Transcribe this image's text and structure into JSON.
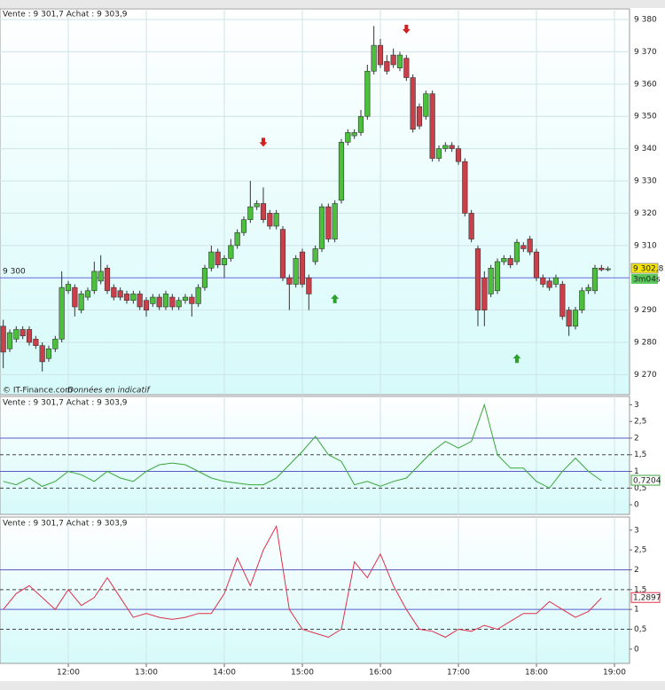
{
  "chart_data": [
    {
      "type": "candlestick",
      "header": "Vente : 9 301,7 Achat : 9 303,9",
      "source": "© IT-Finance.com",
      "note": "Données en indicatif",
      "x": [
        670,
        675,
        680,
        685,
        690,
        695,
        700,
        705,
        710,
        715,
        720,
        725,
        730,
        735,
        740,
        745,
        750,
        755,
        760,
        765,
        770,
        775,
        780,
        785,
        790,
        795,
        800,
        805,
        810,
        815,
        820,
        825,
        830,
        835,
        840,
        845,
        850,
        855,
        860,
        865,
        870,
        875,
        880,
        885,
        890,
        895,
        900,
        905,
        910,
        915,
        920,
        925,
        930,
        935,
        940,
        945,
        950,
        955,
        960,
        965,
        970,
        975,
        980,
        985,
        990,
        995,
        1000,
        1005,
        1010,
        1015,
        1020,
        1025,
        1030,
        1035,
        1040,
        1045,
        1050,
        1055,
        1060,
        1065,
        1070,
        1075,
        1080,
        1085,
        1090,
        1095,
        1100,
        1105,
        1110,
        1115,
        1120,
        1125,
        1130,
        1135
      ],
      "open": [
        9285,
        9278,
        9281,
        9284,
        9284,
        9281,
        9279,
        9275,
        9278,
        9281,
        9296,
        9297,
        9290,
        9294,
        9296,
        9299,
        9303,
        9297,
        9296,
        9295,
        9293,
        9295,
        9293,
        9292,
        9294,
        9291,
        9294,
        9291,
        9293,
        9294,
        9292,
        9297,
        9303,
        9308,
        9304,
        9306,
        9310,
        9314,
        9318,
        9322,
        9323,
        9320,
        9316,
        9315,
        9300,
        9298,
        9308,
        9300,
        9305,
        9309,
        9322,
        9312,
        9324,
        9342,
        9344,
        9345,
        9350,
        9364,
        9372,
        9367,
        9369,
        9365,
        9368,
        9362,
        9353,
        9350,
        9357,
        9337,
        9340,
        9341,
        9340,
        9336,
        9320,
        9309,
        9300,
        9295,
        9296,
        9305,
        9306,
        9305,
        9310,
        9312,
        9308,
        9300,
        9299,
        9298,
        9298,
        9290,
        9285,
        9290,
        9296,
        9296,
        9303,
        9302.5
      ],
      "high": [
        9287,
        9284,
        9285,
        9285,
        9285,
        9282,
        9280,
        9279,
        9282,
        9302,
        9299,
        9298,
        9296,
        9297,
        9305,
        9307,
        9304,
        9298,
        9297,
        9296,
        9296,
        9296,
        9294,
        9295,
        9295,
        9296,
        9295,
        9294,
        9295,
        9295,
        9298,
        9304,
        9310,
        9309,
        9307,
        9312,
        9315,
        9319,
        9330,
        9324,
        9328,
        9321,
        9321,
        9316,
        9301,
        9307,
        9309,
        9301,
        9310,
        9323,
        9323,
        9324,
        9343,
        9346,
        9346,
        9352,
        9366,
        9378,
        9374,
        9369,
        9371,
        9370,
        9369,
        9363,
        9354,
        9358,
        9358,
        9341,
        9342,
        9342,
        9341,
        9337,
        9321,
        9310,
        9302,
        9304,
        9306,
        9307,
        9307,
        9312,
        9311,
        9313,
        9309,
        9301,
        9300,
        9301,
        9299,
        9291,
        9291,
        9297,
        9298,
        9304,
        9304,
        9303.5
      ],
      "low": [
        9272,
        9277,
        9280,
        9281,
        9279,
        9278,
        9271,
        9274,
        9277,
        9280,
        9295,
        9288,
        9289,
        9293,
        9295,
        9298,
        9295,
        9293,
        9293,
        9292,
        9292,
        9290,
        9288,
        9291,
        9290,
        9290,
        9290,
        9290,
        9292,
        9288,
        9291,
        9296,
        9302,
        9303,
        9300,
        9305,
        9309,
        9313,
        9317,
        9321,
        9317,
        9315,
        9315,
        9299,
        9290,
        9297,
        9297,
        9290,
        9304,
        9308,
        9311,
        9311,
        9323,
        9341,
        9343,
        9344,
        9349,
        9363,
        9365,
        9363,
        9365,
        9364,
        9361,
        9345,
        9346,
        9349,
        9336,
        9336,
        9339,
        9339,
        9335,
        9319,
        9311,
        9285,
        9285,
        9294,
        9295,
        9304,
        9303,
        9304,
        9308,
        9307,
        9299,
        9297,
        9296,
        9297,
        9287,
        9282,
        9284,
        9289,
        9295,
        9295,
        9302,
        9302
      ],
      "close": [
        9277,
        9283,
        9284,
        9282,
        9280,
        9279,
        9274,
        9278,
        9281,
        9297,
        9298,
        9291,
        9295,
        9296,
        9302,
        9302,
        9296,
        9294,
        9294,
        9293,
        9295,
        9291,
        9290,
        9294,
        9291,
        9295,
        9291,
        9293,
        9294,
        9292,
        9297,
        9303,
        9308,
        9304,
        9306,
        9310,
        9314,
        9318,
        9322,
        9323,
        9318,
        9316,
        9320,
        9300,
        9298,
        9306,
        9298,
        9295,
        9309,
        9322,
        9312,
        9323,
        9342,
        9345,
        9345,
        9350,
        9364,
        9372,
        9366,
        9364,
        9366,
        9369,
        9362,
        9346,
        9347,
        9357,
        9337,
        9340,
        9341,
        9340,
        9336,
        9320,
        9312,
        9290,
        9290,
        9303,
        9305,
        9306,
        9304,
        9311,
        9309,
        9308,
        9300,
        9298,
        9297,
        9300,
        9288,
        9285,
        9290,
        9296,
        9297,
        9303,
        9302.5,
        9302.8
      ],
      "up_color": "#4cbf3c",
      "down_color": "#c9404a",
      "xlim": [
        667.5,
        1151.6
      ],
      "xticks": [
        {
          "value": 720,
          "label": "12:00"
        },
        {
          "value": 780,
          "label": "13:00"
        },
        {
          "value": 840,
          "label": "14:00"
        },
        {
          "value": 900,
          "label": "15:00"
        },
        {
          "value": 960,
          "label": "16:00"
        },
        {
          "value": 1020,
          "label": "17:00"
        },
        {
          "value": 1080,
          "label": "18:00"
        },
        {
          "value": 1140,
          "label": "19:00"
        }
      ],
      "ylim": [
        9263.8,
        9383.3
      ],
      "yticks": [
        {
          "value": 9270,
          "label": "9 270"
        },
        {
          "value": 9280,
          "label": "9 280"
        },
        {
          "value": 9290,
          "label": "9 290"
        },
        {
          "value": 9310,
          "label": "9 310"
        },
        {
          "value": 9320,
          "label": "9 320"
        },
        {
          "value": 9330,
          "label": "9 330"
        },
        {
          "value": 9340,
          "label": "9 340"
        },
        {
          "value": 9350,
          "label": "9 350"
        },
        {
          "value": 9360,
          "label": "9 360"
        },
        {
          "value": 9370,
          "label": "9 370"
        },
        {
          "value": 9380,
          "label": "9 380"
        }
      ],
      "reference": {
        "value": 9300,
        "label": "9 300"
      },
      "last": {
        "value": 9302.8,
        "label": "9 302,8"
      },
      "timer": "3m04s",
      "signals": [
        {
          "x": 870,
          "y": 9342,
          "direction": "down"
        },
        {
          "x": 980,
          "y": 9377,
          "direction": "down"
        },
        {
          "x": 925,
          "y": 9293.5,
          "direction": "up"
        },
        {
          "x": 1065,
          "y": 9275,
          "direction": "up"
        }
      ]
    },
    {
      "type": "line",
      "header": "Vente : 9 301,7 Achat : 9 303,9",
      "x": [
        670,
        680,
        690,
        700,
        710,
        720,
        730,
        740,
        750,
        760,
        770,
        780,
        790,
        800,
        810,
        820,
        830,
        840,
        850,
        860,
        870,
        880,
        890,
        900,
        910,
        920,
        930,
        940,
        950,
        960,
        970,
        980,
        990,
        1000,
        1010,
        1020,
        1030,
        1040,
        1050,
        1060,
        1070,
        1080,
        1090,
        1100,
        1110,
        1120,
        1130
      ],
      "values": [
        0.7,
        0.6,
        0.8,
        0.55,
        0.7,
        1.0,
        0.9,
        0.7,
        1.0,
        0.8,
        0.7,
        1.0,
        1.2,
        1.25,
        1.2,
        1.0,
        0.8,
        0.7,
        0.65,
        0.6,
        0.6,
        0.8,
        1.2,
        1.6,
        2.05,
        1.5,
        1.3,
        0.6,
        0.7,
        0.55,
        0.7,
        0.8,
        1.2,
        1.6,
        1.9,
        1.7,
        1.9,
        3.0,
        1.5,
        1.1,
        1.1,
        0.7,
        0.5,
        1.0,
        1.4,
        1.0,
        0.7204
      ],
      "color": "#3aa63a",
      "last": {
        "value": 0.7204,
        "label": "0,7204"
      },
      "ylim": [
        -0.29,
        3.25
      ],
      "yticks": [
        0,
        {
          "value": 0.5,
          "label": "0,5"
        },
        1,
        {
          "value": 1.5,
          "label": "1,5"
        },
        2,
        {
          "value": 2.5,
          "label": "2,5"
        },
        3
      ],
      "levels": [
        {
          "value": 2,
          "style": "solid"
        },
        {
          "value": 1.5,
          "style": "dashed"
        },
        {
          "value": 1,
          "style": "solid"
        },
        {
          "value": 0.5,
          "style": "dashed"
        }
      ]
    },
    {
      "type": "line",
      "header": "Vente : 9 301,7 Achat : 9 303,9",
      "x": [
        670,
        680,
        690,
        700,
        710,
        720,
        730,
        740,
        750,
        760,
        770,
        780,
        790,
        800,
        810,
        820,
        830,
        840,
        850,
        860,
        870,
        880,
        890,
        900,
        910,
        920,
        930,
        940,
        950,
        960,
        970,
        980,
        990,
        1000,
        1010,
        1020,
        1030,
        1040,
        1050,
        1060,
        1070,
        1080,
        1090,
        1100,
        1110,
        1120,
        1130
      ],
      "values": [
        1.0,
        1.4,
        1.6,
        1.3,
        1.0,
        1.5,
        1.1,
        1.3,
        1.8,
        1.3,
        0.8,
        0.9,
        0.8,
        0.75,
        0.8,
        0.9,
        0.9,
        1.4,
        2.3,
        1.6,
        2.5,
        3.1,
        1.0,
        0.5,
        0.4,
        0.3,
        0.5,
        2.2,
        1.8,
        2.4,
        1.6,
        1.0,
        0.5,
        0.45,
        0.3,
        0.5,
        0.45,
        0.6,
        0.5,
        0.7,
        0.9,
        0.9,
        1.2,
        1.0,
        0.8,
        0.95,
        1.2897
      ],
      "color": "#e0304a",
      "last": {
        "value": 1.2897,
        "label": "1,2897"
      },
      "ylim": [
        -0.36,
        3.33
      ],
      "yticks": [
        0,
        {
          "value": 0.5,
          "label": "0,5"
        },
        1,
        {
          "value": 1.5,
          "label": "1,5"
        },
        2,
        {
          "value": 2.5,
          "label": "2,5"
        },
        3
      ],
      "levels": [
        {
          "value": 2,
          "style": "solid"
        },
        {
          "value": 1.5,
          "style": "dashed"
        },
        {
          "value": 1,
          "style": "solid"
        },
        {
          "value": 0.5,
          "style": "dashed"
        }
      ]
    }
  ]
}
